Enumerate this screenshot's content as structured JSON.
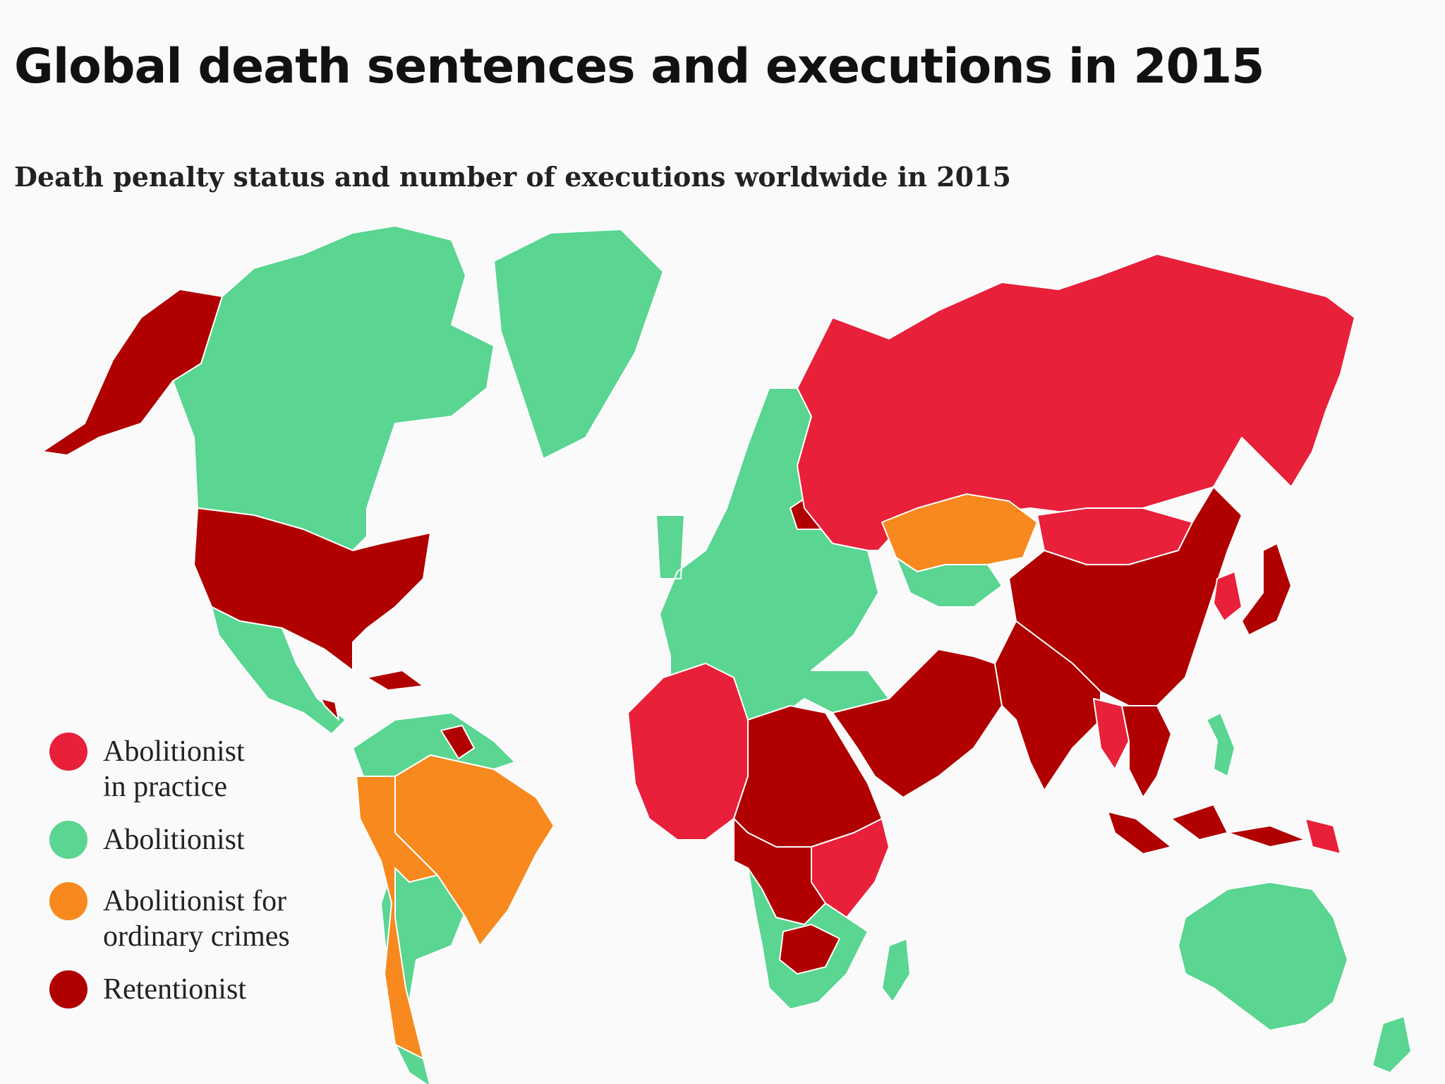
{
  "title": "Global death sentences and executions in 2015",
  "subtitle": "Death penalty status and number of executions worldwide in 2015",
  "colors": {
    "abolitionist_in_practice": "#e8203a",
    "abolitionist": "#5ad592",
    "abolitionist_ordinary": "#f7891f",
    "retentionist": "#b00000",
    "border": "#ffffff"
  },
  "legend": [
    {
      "label_line1": "Abolitionist",
      "label_line2": "in practice",
      "color": "#e8203a"
    },
    {
      "label_line1": "Abolitionist",
      "label_line2": "",
      "color": "#5ad592"
    },
    {
      "label_line1": "Abolitionist for",
      "label_line2": "ordinary crimes",
      "color": "#f7891f"
    },
    {
      "label_line1": "Retentionist",
      "label_line2": "",
      "color": "#b00000"
    }
  ],
  "regions": [
    {
      "name": "Alaska",
      "status": "retentionist"
    },
    {
      "name": "Canada",
      "status": "abolitionist"
    },
    {
      "name": "Greenland",
      "status": "abolitionist"
    },
    {
      "name": "United States",
      "status": "retentionist"
    },
    {
      "name": "Mexico and Central America",
      "status": "abolitionist"
    },
    {
      "name": "Caribbean",
      "status": "retentionist"
    },
    {
      "name": "Brazil",
      "status": "abolitionist_ordinary"
    },
    {
      "name": "Peru and Chile",
      "status": "abolitionist_ordinary"
    },
    {
      "name": "Guyana",
      "status": "retentionist"
    },
    {
      "name": "South America",
      "status": "abolitionist"
    },
    {
      "name": "Europe",
      "status": "abolitionist"
    },
    {
      "name": "Belarus",
      "status": "retentionist"
    },
    {
      "name": "Russia",
      "status": "abolitionist_in_practice"
    },
    {
      "name": "Kazakhstan",
      "status": "abolitionist_ordinary"
    },
    {
      "name": "Central Asia",
      "status": "abolitionist"
    },
    {
      "name": "Mongolia",
      "status": "abolitionist_in_practice"
    },
    {
      "name": "China",
      "status": "retentionist"
    },
    {
      "name": "Korea",
      "status": "abolitionist_in_practice"
    },
    {
      "name": "Japan",
      "status": "retentionist"
    },
    {
      "name": "Middle East",
      "status": "retentionist"
    },
    {
      "name": "South Asia",
      "status": "retentionist"
    },
    {
      "name": "Southeast Asia",
      "status": "retentionist"
    },
    {
      "name": "Myanmar and Laos",
      "status": "abolitionist_in_practice"
    },
    {
      "name": "Indonesia",
      "status": "retentionist"
    },
    {
      "name": "Papua New Guinea",
      "status": "abolitionist_in_practice"
    },
    {
      "name": "Philippines",
      "status": "abolitionist"
    },
    {
      "name": "North-West Africa",
      "status": "abolitionist_in_practice"
    },
    {
      "name": "North-East Africa",
      "status": "retentionist"
    },
    {
      "name": "Central Africa",
      "status": "retentionist"
    },
    {
      "name": "East Africa",
      "status": "abolitionist_in_practice"
    },
    {
      "name": "Southern Africa",
      "status": "abolitionist"
    },
    {
      "name": "Zimbabwe and Botswana",
      "status": "retentionist"
    },
    {
      "name": "Madagascar",
      "status": "abolitionist"
    },
    {
      "name": "Australia",
      "status": "abolitionist"
    },
    {
      "name": "New Zealand",
      "status": "abolitionist"
    }
  ]
}
